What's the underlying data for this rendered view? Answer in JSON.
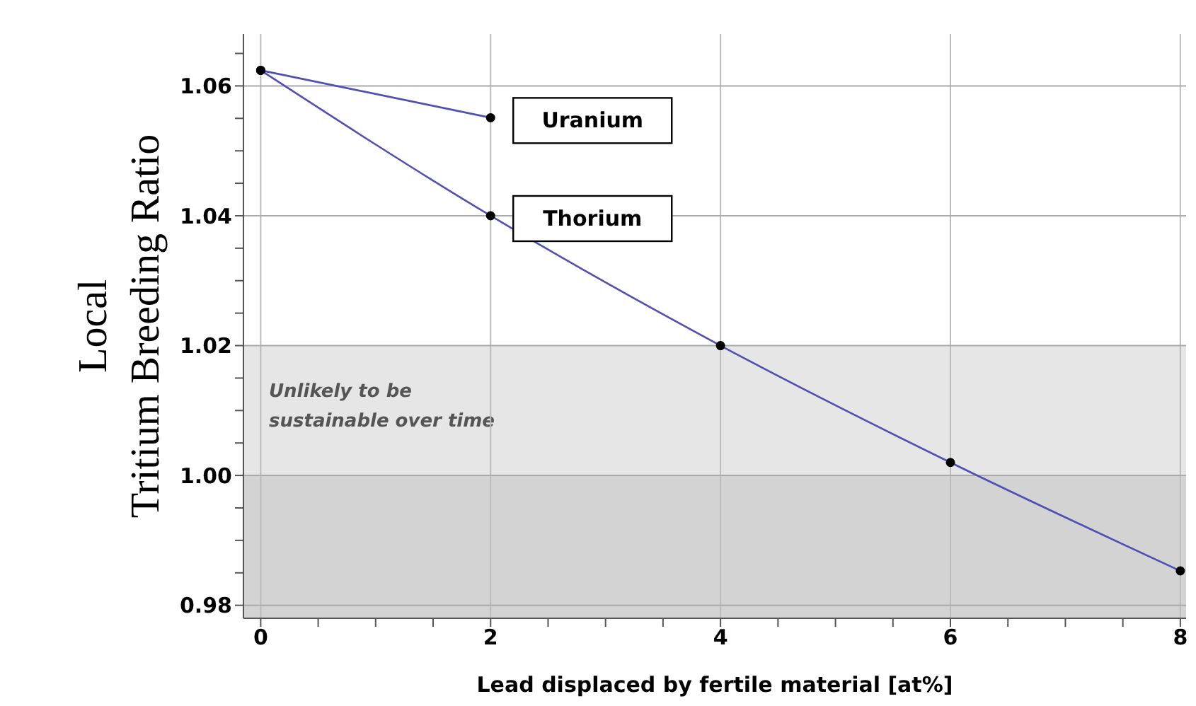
{
  "chart_data": {
    "type": "line",
    "xlabel": "Lead displaced by fertile material [at%]",
    "ylabel": "Local\nTritium Breeding Ratio",
    "x": [
      0,
      2,
      4,
      6,
      8
    ],
    "series": [
      {
        "name": "Uranium",
        "color": "#5050b4",
        "values": [
          1.0624,
          1.0551,
          null,
          null,
          null
        ]
      },
      {
        "name": "Thorium",
        "color": "#5050b4",
        "values": [
          1.0624,
          1.04,
          1.02,
          1.002,
          0.9853
        ]
      }
    ],
    "xlim": [
      -0.15,
      8.05
    ],
    "xticks": [
      0,
      {
        "value": 0.5,
        "label": null
      },
      {
        "value": 1,
        "label": null
      },
      {
        "value": 1.5,
        "label": null
      },
      2,
      {
        "value": 2.5,
        "label": null
      },
      {
        "value": 3,
        "label": null
      },
      {
        "value": 3.5,
        "label": null
      },
      4,
      {
        "value": 4.5,
        "label": null
      },
      {
        "value": 5,
        "label": null
      },
      {
        "value": 5.5,
        "label": null
      },
      6,
      {
        "value": 6.5,
        "label": null
      },
      {
        "value": 7,
        "label": null
      },
      {
        "value": 7.5,
        "label": null
      },
      8
    ],
    "ylim": [
      0.978,
      1.068
    ],
    "yticks": [
      {
        "value": 0.98,
        "label": "0.98"
      },
      {
        "value": 0.985,
        "label": null
      },
      {
        "value": 0.99,
        "label": null
      },
      {
        "value": 0.995,
        "label": null
      },
      {
        "value": 1.0,
        "label": "1.00"
      },
      {
        "value": 1.005,
        "label": null
      },
      {
        "value": 1.01,
        "label": null
      },
      {
        "value": 1.015,
        "label": null
      },
      {
        "value": 1.02,
        "label": "1.02"
      },
      {
        "value": 1.025,
        "label": null
      },
      {
        "value": 1.03,
        "label": null
      },
      {
        "value": 1.035,
        "label": null
      },
      {
        "value": 1.04,
        "label": "1.04"
      },
      {
        "value": 1.045,
        "label": null
      },
      {
        "value": 1.05,
        "label": null
      },
      {
        "value": 1.055,
        "label": null
      },
      {
        "value": 1.06,
        "label": "1.06"
      },
      {
        "value": 1.065,
        "label": null
      }
    ],
    "bands": [
      {
        "axis": "y",
        "from": 1.0,
        "to": 1.02,
        "label": "Unlikely to be sustainable over time",
        "color": "#e6e6e6"
      },
      {
        "axis": "y",
        "from": 0.978,
        "to": 1.0,
        "color": "#d3d3d3"
      }
    ],
    "grid": true,
    "marker": "circle",
    "line_style": "solid",
    "legend": false
  }
}
